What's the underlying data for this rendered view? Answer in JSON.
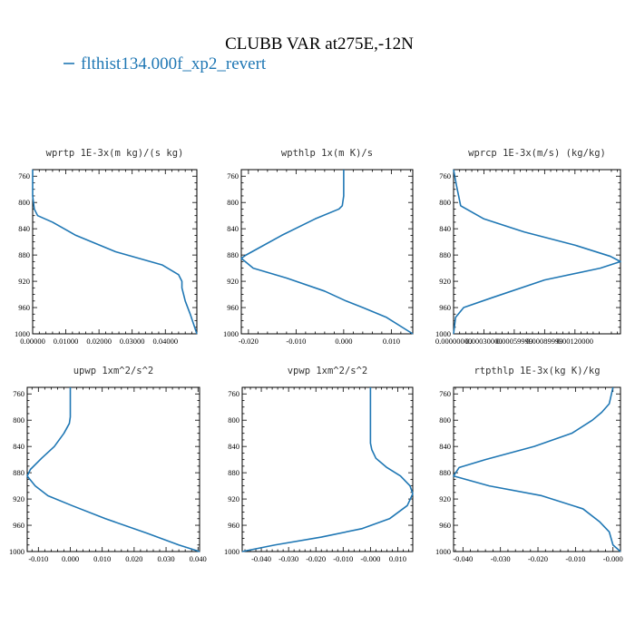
{
  "title": "CLUBB VAR at275E,-12N",
  "legend": {
    "label": "flthist134.000f_xp2_revert",
    "color": "#1f77b4"
  },
  "chart_data": [
    {
      "type": "line",
      "title": "wprtp  1E-3x(m kg)/(s kg)",
      "xlim": [
        0,
        0.0495
      ],
      "ylim": [
        1000,
        750
      ],
      "xticks": [
        0,
        0.01,
        0.02,
        0.03,
        0.04
      ],
      "xtick_labels": [
        "0.00000",
        "0.01000",
        "0.02000",
        "0.03000",
        "0.04000"
      ],
      "yticks": [
        760,
        800,
        840,
        880,
        920,
        960,
        1000
      ],
      "ytick_labels": [
        "760",
        "800",
        "840",
        "880",
        "920",
        "960",
        "1000"
      ],
      "series": [
        {
          "x": [
            0,
            0,
            0.0005,
            0.0015,
            0.006,
            0.013,
            0.025,
            0.039,
            0.044,
            0.045,
            0.045,
            0.046,
            0.0475,
            0.0495
          ],
          "y": [
            750,
            790,
            810,
            820,
            830,
            850,
            875,
            895,
            910,
            920,
            930,
            950,
            970,
            1000
          ]
        }
      ]
    },
    {
      "type": "line",
      "title": "wpthlp  1x(m K)/s",
      "xlim": [
        -0.0215,
        0.0145
      ],
      "ylim": [
        1000,
        750
      ],
      "xticks": [
        -0.02,
        -0.01,
        0,
        0.01
      ],
      "xtick_labels": [
        "-0.020",
        "-0.010",
        "0.000",
        "0.010"
      ],
      "series": [
        {
          "x": [
            0.0,
            0.0,
            -0.0003,
            -0.001,
            -0.006,
            -0.013,
            -0.018,
            -0.0205,
            -0.0215,
            -0.019,
            -0.012,
            -0.004,
            0.0005,
            0.004,
            0.009,
            0.0145
          ],
          "y": [
            750,
            790,
            805,
            810,
            825,
            850,
            870,
            880,
            885,
            900,
            915,
            935,
            950,
            960,
            975,
            1000
          ]
        }
      ]
    },
    {
      "type": "line",
      "title": "wprcp  1E-3x(m/s) (kg/kg)",
      "xlim": [
        0,
        0.00165
      ],
      "ylim": [
        1000,
        750
      ],
      "xtick_labels": [
        "0.00000000",
        "0.00030000",
        "0.00059999",
        "0.00089999",
        "0.00120000"
      ],
      "series": [
        {
          "x": [
            0.0,
            3e-05,
            7e-05,
            0.0003,
            0.0007,
            0.0012,
            0.00155,
            0.00165,
            0.00145,
            0.0009,
            0.00038,
            0.0001,
            2e-05,
            0.0
          ],
          "y": [
            750,
            775,
            805,
            825,
            845,
            865,
            882,
            890,
            900,
            918,
            945,
            960,
            975,
            1000
          ]
        }
      ]
    },
    {
      "type": "line",
      "title": "upwp  1xm^2/s^2",
      "xlim": [
        -0.0135,
        0.0405
      ],
      "ylim": [
        1000,
        750
      ],
      "xtick_labels": [
        "-0.010",
        "0.000",
        "0.010",
        "0.020",
        "0.030",
        "0.040"
      ],
      "series": [
        {
          "x": [
            0.0,
            0.0,
            -0.0003,
            -0.002,
            -0.005,
            -0.009,
            -0.0125,
            -0.0135,
            -0.011,
            -0.007,
            0.0005,
            0.011,
            0.024,
            0.034,
            0.0405
          ],
          "y": [
            750,
            795,
            805,
            820,
            840,
            858,
            875,
            885,
            900,
            915,
            930,
            950,
            972,
            990,
            1000
          ]
        }
      ]
    },
    {
      "type": "line",
      "title": "vpwp  1xm^2/s^2",
      "xlim": [
        -0.047,
        0.0155
      ],
      "ylim": [
        1000,
        750
      ],
      "xtick_labels": [
        "-0.040",
        "-0.030",
        "-0.020",
        "-0.010",
        "-0.000",
        "0.010"
      ],
      "series": [
        {
          "x": [
            0.0,
            0.0,
            0.0,
            0.0005,
            0.002,
            0.006,
            0.011,
            0.0145,
            0.0155,
            0.0135,
            0.007,
            -0.003,
            -0.018,
            -0.035,
            -0.047
          ],
          "y": [
            750,
            820,
            835,
            845,
            858,
            872,
            885,
            900,
            912,
            930,
            950,
            965,
            978,
            990,
            1000
          ]
        }
      ]
    },
    {
      "type": "line",
      "title": "rtpthlp  1E-3x(kg K)/kg",
      "xlim": [
        -0.0425,
        0.002
      ],
      "ylim": [
        1000,
        750
      ],
      "xtick_labels": [
        "-0.040",
        "-0.030",
        "-0.020",
        "-0.010",
        "-0.000"
      ],
      "series": [
        {
          "x": [
            0.0,
            -0.001,
            -0.003,
            -0.0055,
            -0.011,
            -0.021,
            -0.034,
            -0.041,
            -0.0425,
            -0.033,
            -0.019,
            -0.008,
            -0.0035,
            -0.001,
            0.0,
            0.002
          ],
          "y": [
            750,
            775,
            788,
            800,
            820,
            840,
            860,
            872,
            885,
            900,
            915,
            935,
            955,
            970,
            990,
            1000
          ]
        }
      ]
    }
  ]
}
